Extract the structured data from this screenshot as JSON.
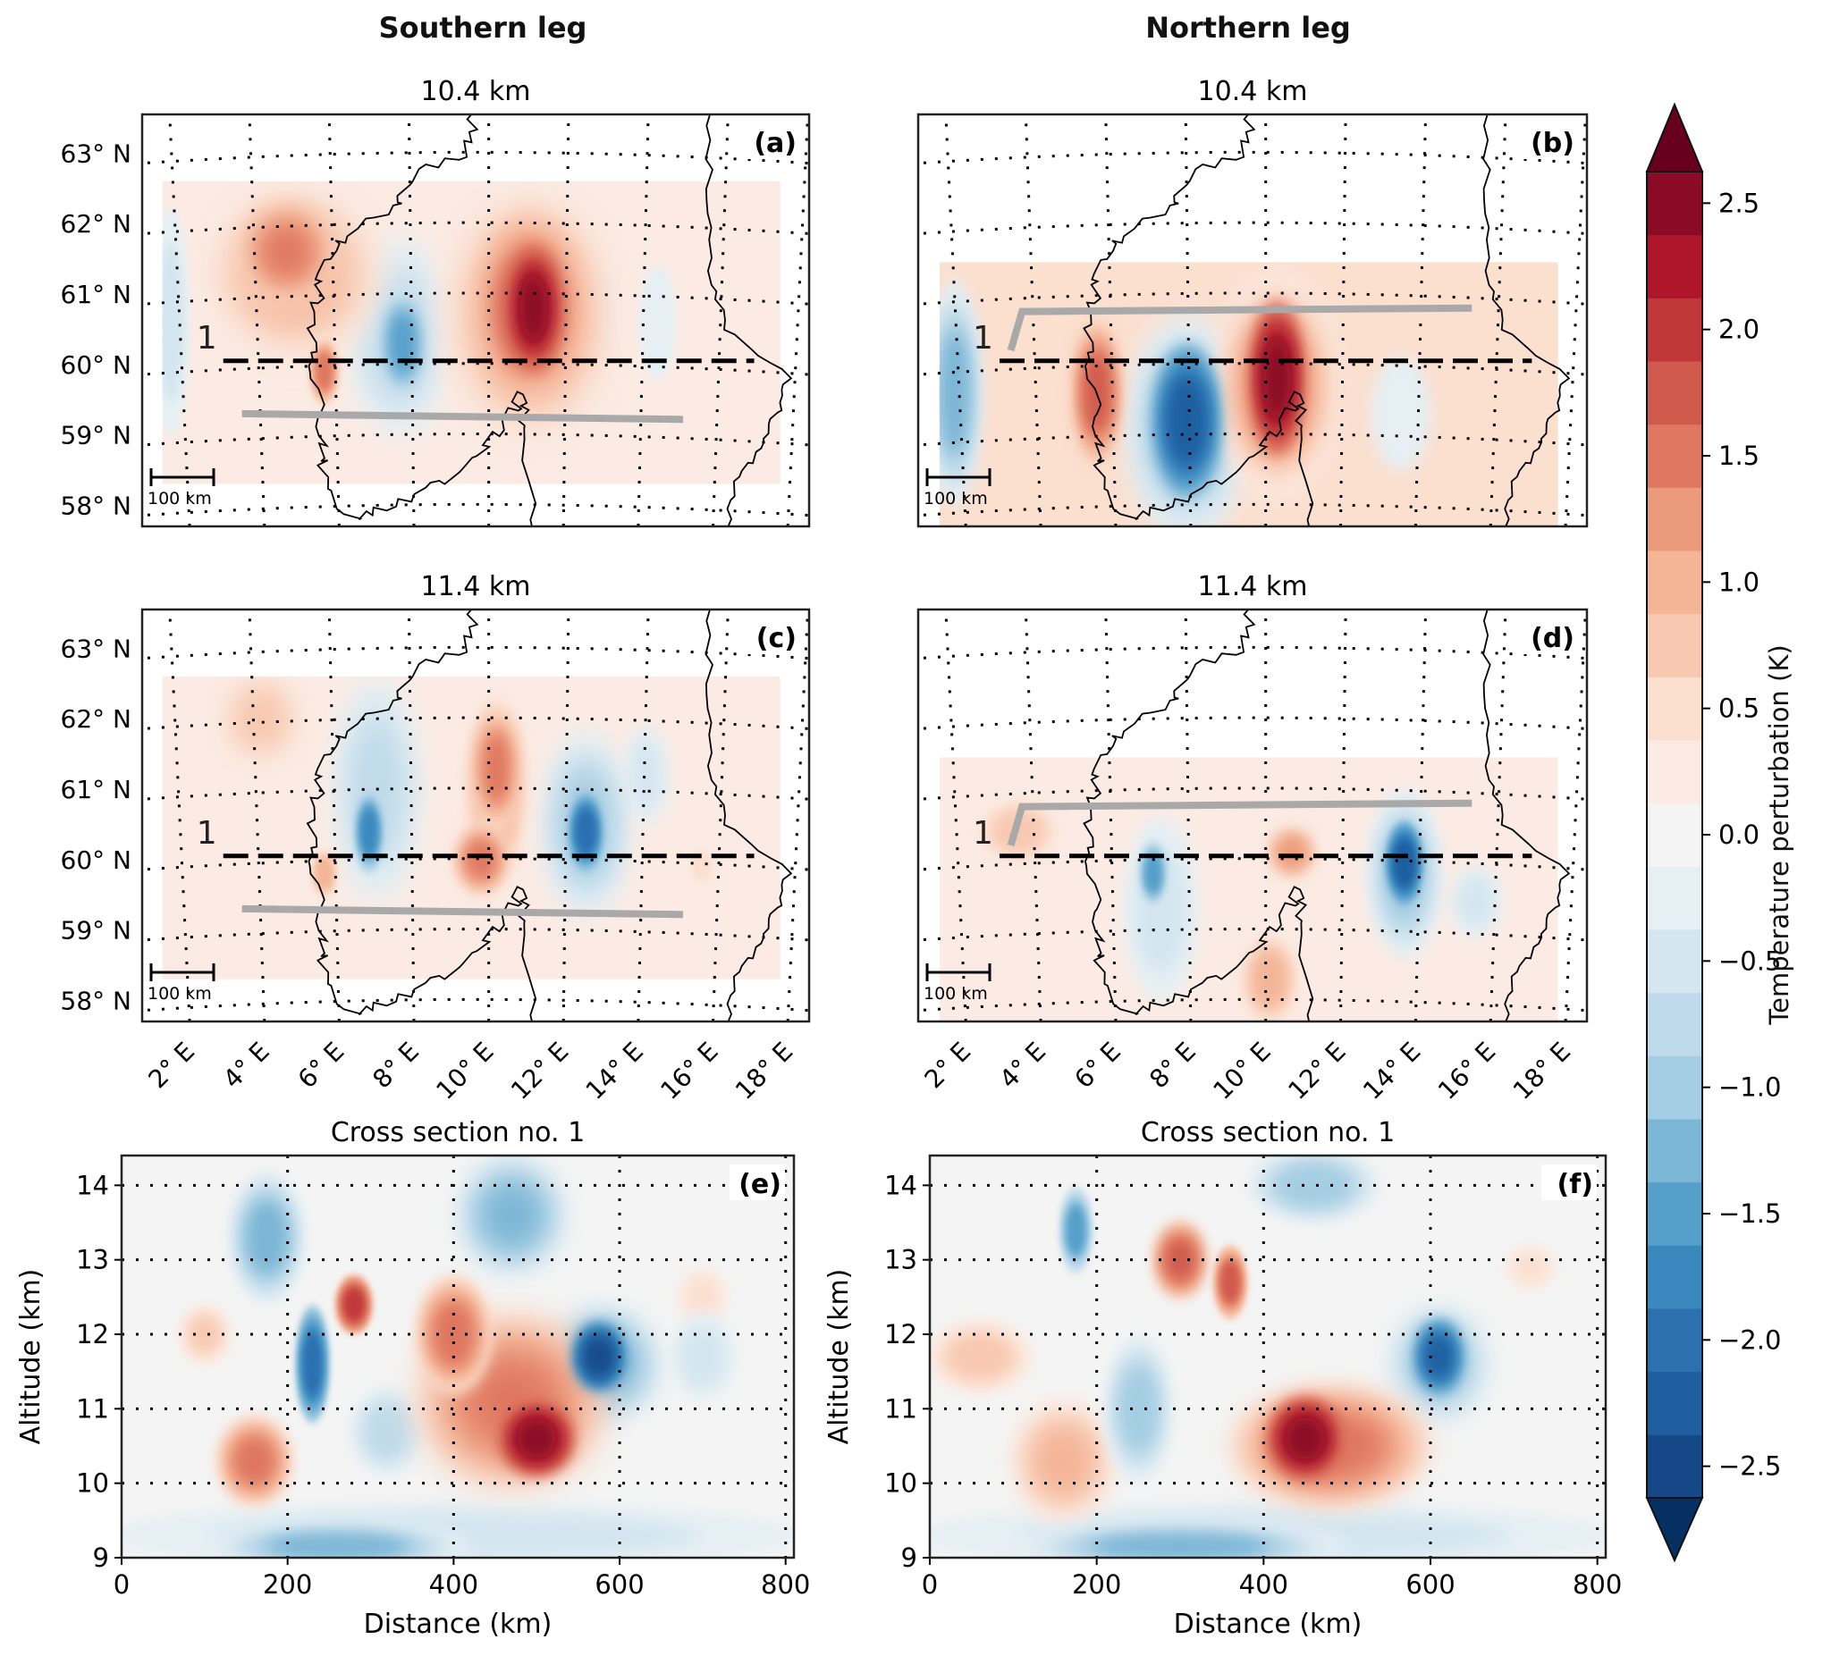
{
  "figure": {
    "col_titles": [
      "Southern leg",
      "Northern leg"
    ]
  },
  "colorbar": {
    "label": "Temperature perturbation (K)",
    "ticks": [
      "2.5",
      "2.0",
      "1.5",
      "1.0",
      "0.5",
      "0.0",
      "−0.5",
      "−1.0",
      "−1.5",
      "−2.0",
      "−2.5"
    ],
    "tick_values": [
      2.5,
      2.0,
      1.5,
      1.0,
      0.5,
      0.0,
      -0.5,
      -1.0,
      -1.5,
      -2.0,
      -2.5
    ],
    "range": [
      -2.625,
      2.625
    ],
    "level_step": 0.25,
    "colors_low_to_high": [
      "#164888",
      "#1f5ea0",
      "#2c70b0",
      "#3b88bf",
      "#559fcb",
      "#7bb6d6",
      "#a5cde3",
      "#bfdaea",
      "#d5e6f0",
      "#e5eff4",
      "#f4f4f4",
      "#fbebe4",
      "#fbdfcf",
      "#f8c8b0",
      "#f4b496",
      "#ec9a7c",
      "#df7660",
      "#d05a4d",
      "#c1373a",
      "#b0162b",
      "#8b0a25"
    ],
    "extend_low": "#053061",
    "extend_high": "#67001f"
  },
  "chart_data": [
    {
      "id": "a",
      "type": "heatmap",
      "panel_label": "(a)",
      "title": "10.4 km",
      "kind": "map",
      "lon_range": [
        0.73,
        18.57
      ],
      "lat_range": [
        57.7,
        63.55
      ],
      "lat_ticks": [
        {
          "v": 63,
          "t": "63° N"
        },
        {
          "v": 62,
          "t": "62° N"
        },
        {
          "v": 61,
          "t": "61° N"
        },
        {
          "v": 60,
          "t": "60° N"
        },
        {
          "v": 59,
          "t": "59° N"
        },
        {
          "v": 58,
          "t": "58° N"
        }
      ],
      "lon_ticks": [],
      "section_label": "1",
      "section_line": {
        "lon": [
          2.9,
          17.1
        ],
        "lat": 60.05
      },
      "flight_track": [
        [
          3.4,
          59.3
        ],
        [
          15.2,
          59.22
        ]
      ],
      "scale_bar": "100 km",
      "data_extent": {
        "lon": [
          1.27,
          17.8
        ],
        "lat": [
          58.3,
          62.6
        ]
      },
      "background_value": 0.35,
      "features": [
        {
          "lon": 1.5,
          "lat": 60.6,
          "rlon": 0.5,
          "rlat": 1.6,
          "value": -0.6
        },
        {
          "lon": 14.5,
          "lat": 60.6,
          "rlon": 0.5,
          "rlat": 0.8,
          "value": -0.3
        },
        {
          "lon": 13.0,
          "lat": 60.8,
          "rlon": 0.4,
          "rlat": 0.6,
          "value": -0.2
        },
        {
          "lon": 4.8,
          "lat": 61.3,
          "rlon": 2.3,
          "rlat": 1.2,
          "value": 1.0
        },
        {
          "lon": 4.6,
          "lat": 61.6,
          "rlon": 1.2,
          "rlat": 0.7,
          "value": 1.4
        },
        {
          "lon": 11.1,
          "lat": 60.7,
          "rlon": 2.3,
          "rlat": 1.9,
          "value": 1.1
        },
        {
          "lon": 11.1,
          "lat": 60.8,
          "rlon": 1.3,
          "rlat": 1.3,
          "value": 1.8
        },
        {
          "lon": 11.2,
          "lat": 60.8,
          "rlon": 0.7,
          "rlat": 0.9,
          "value": 2.6
        },
        {
          "lon": 7.6,
          "lat": 60.4,
          "rlon": 1.3,
          "rlat": 1.4,
          "value": -0.8
        },
        {
          "lon": 7.7,
          "lat": 60.3,
          "rlon": 0.6,
          "rlat": 0.8,
          "value": -1.6
        },
        {
          "lon": 5.6,
          "lat": 59.9,
          "rlon": 0.4,
          "rlat": 0.5,
          "value": 1.5
        }
      ]
    },
    {
      "id": "b",
      "type": "heatmap",
      "panel_label": "(b)",
      "title": "10.4 km",
      "kind": "map",
      "lon_range": [
        0.73,
        18.57
      ],
      "lat_range": [
        57.7,
        63.55
      ],
      "lat_ticks": [],
      "lon_ticks": [],
      "section_label": "1",
      "section_line": {
        "lon": [
          2.9,
          17.1
        ],
        "lat": 60.05
      },
      "flight_track": [
        [
          3.2,
          60.2
        ],
        [
          3.5,
          60.75
        ],
        [
          15.5,
          60.8
        ]
      ],
      "scale_bar": "100 km",
      "data_extent": {
        "lon": [
          1.3,
          17.8
        ],
        "lat": [
          57.7,
          61.45
        ]
      },
      "background_value": 0.45,
      "features": [
        {
          "lon": 1.7,
          "lat": 59.6,
          "rlon": 0.7,
          "rlat": 1.6,
          "value": -1.2
        },
        {
          "lon": 13.6,
          "lat": 59.3,
          "rlon": 0.8,
          "rlat": 0.8,
          "value": -0.3
        },
        {
          "lon": 7.9,
          "lat": 59.1,
          "rlon": 1.6,
          "rlat": 1.6,
          "value": -1.0
        },
        {
          "lon": 7.9,
          "lat": 59.2,
          "rlon": 0.9,
          "rlat": 1.1,
          "value": -2.2
        },
        {
          "lon": 10.3,
          "lat": 59.7,
          "rlon": 1.6,
          "rlat": 1.6,
          "value": 1.3
        },
        {
          "lon": 10.3,
          "lat": 59.8,
          "rlon": 0.7,
          "rlat": 1.1,
          "value": 2.4
        },
        {
          "lon": 5.5,
          "lat": 59.6,
          "rlon": 0.6,
          "rlat": 1.0,
          "value": 1.7
        }
      ]
    },
    {
      "id": "c",
      "type": "heatmap",
      "panel_label": "(c)",
      "title": "11.4 km",
      "kind": "map",
      "lon_range": [
        0.73,
        18.57
      ],
      "lat_range": [
        57.7,
        63.55
      ],
      "lat_ticks": [
        {
          "v": 63,
          "t": "63° N"
        },
        {
          "v": 62,
          "t": "62° N"
        },
        {
          "v": 61,
          "t": "61° N"
        },
        {
          "v": 60,
          "t": "60° N"
        },
        {
          "v": 59,
          "t": "59° N"
        },
        {
          "v": 58,
          "t": "58° N"
        }
      ],
      "lon_ticks": [
        {
          "v": 2,
          "t": "2° E"
        },
        {
          "v": 4,
          "t": "4° E"
        },
        {
          "v": 6,
          "t": "6° E"
        },
        {
          "v": 8,
          "t": "8° E"
        },
        {
          "v": 10,
          "t": "10° E"
        },
        {
          "v": 12,
          "t": "12° E"
        },
        {
          "v": 14,
          "t": "14° E"
        },
        {
          "v": 16,
          "t": "16° E"
        },
        {
          "v": 18,
          "t": "18° E"
        }
      ],
      "section_label": "1",
      "section_line": {
        "lon": [
          2.9,
          17.1
        ],
        "lat": 60.05
      },
      "flight_track": [
        [
          3.4,
          59.3
        ],
        [
          15.2,
          59.22
        ]
      ],
      "scale_bar": "100 km",
      "data_extent": {
        "lon": [
          1.27,
          17.8
        ],
        "lat": [
          58.3,
          62.6
        ]
      },
      "background_value": 0.25,
      "features": [
        {
          "lon": 3.9,
          "lat": 62.0,
          "rlon": 1.2,
          "rlat": 0.7,
          "value": 0.8
        },
        {
          "lon": 14.2,
          "lat": 61.2,
          "rlon": 0.6,
          "rlat": 0.7,
          "value": -0.5
        },
        {
          "lon": 15.7,
          "lat": 59.9,
          "rlon": 0.4,
          "rlat": 0.3,
          "value": 0.6
        },
        {
          "lon": 7.0,
          "lat": 61.0,
          "rlon": 1.1,
          "rlat": 1.6,
          "value": -0.7
        },
        {
          "lon": 6.8,
          "lat": 60.4,
          "rlon": 0.4,
          "rlat": 0.6,
          "value": -1.8
        },
        {
          "lon": 10.2,
          "lat": 61.0,
          "rlon": 0.9,
          "rlat": 1.5,
          "value": 1.0
        },
        {
          "lon": 10.2,
          "lat": 61.3,
          "rlon": 0.6,
          "rlat": 0.9,
          "value": 1.4
        },
        {
          "lon": 9.8,
          "lat": 60.0,
          "rlon": 0.7,
          "rlat": 0.5,
          "value": 1.5
        },
        {
          "lon": 12.6,
          "lat": 60.5,
          "rlon": 1.1,
          "rlat": 1.3,
          "value": -1.0
        },
        {
          "lon": 12.6,
          "lat": 60.4,
          "rlon": 0.5,
          "rlat": 0.6,
          "value": -2.0
        },
        {
          "lon": 5.6,
          "lat": 59.8,
          "rlon": 0.4,
          "rlat": 0.4,
          "value": 1.0
        }
      ]
    },
    {
      "id": "d",
      "type": "heatmap",
      "panel_label": "(d)",
      "title": "11.4 km",
      "kind": "map",
      "lon_range": [
        0.73,
        18.57
      ],
      "lat_range": [
        57.7,
        63.55
      ],
      "lat_ticks": [],
      "lon_ticks": [
        {
          "v": 2,
          "t": "2° E"
        },
        {
          "v": 4,
          "t": "4° E"
        },
        {
          "v": 6,
          "t": "6° E"
        },
        {
          "v": 8,
          "t": "8° E"
        },
        {
          "v": 10,
          "t": "10° E"
        },
        {
          "v": 12,
          "t": "12° E"
        },
        {
          "v": 14,
          "t": "14° E"
        },
        {
          "v": 16,
          "t": "16° E"
        },
        {
          "v": 18,
          "t": "18° E"
        }
      ],
      "section_label": "1",
      "section_line": {
        "lon": [
          2.9,
          17.1
        ],
        "lat": 60.05
      },
      "flight_track": [
        [
          3.2,
          60.2
        ],
        [
          3.5,
          60.75
        ],
        [
          15.5,
          60.8
        ]
      ],
      "scale_bar": "100 km",
      "data_extent": {
        "lon": [
          1.3,
          17.8
        ],
        "lat": [
          57.7,
          61.45
        ]
      },
      "background_value": 0.15,
      "features": [
        {
          "lon": 3.4,
          "lat": 60.4,
          "rlon": 1.2,
          "rlat": 0.5,
          "value": 0.7
        },
        {
          "lon": 15.6,
          "lat": 59.4,
          "rlon": 0.7,
          "rlat": 0.5,
          "value": -0.5
        },
        {
          "lon": 10.1,
          "lat": 58.3,
          "rlon": 0.8,
          "rlat": 0.7,
          "value": 0.9
        },
        {
          "lon": 7.2,
          "lat": 59.3,
          "rlon": 1.0,
          "rlat": 1.3,
          "value": -0.6
        },
        {
          "lon": 7.0,
          "lat": 59.8,
          "rlon": 0.4,
          "rlat": 0.5,
          "value": -1.5
        },
        {
          "lon": 10.7,
          "lat": 60.1,
          "rlon": 0.7,
          "rlat": 0.4,
          "value": 1.3
        },
        {
          "lon": 13.7,
          "lat": 59.8,
          "rlon": 1.0,
          "rlat": 1.2,
          "value": -1.0
        },
        {
          "lon": 13.7,
          "lat": 59.95,
          "rlon": 0.5,
          "rlat": 0.6,
          "value": -2.3
        }
      ]
    },
    {
      "id": "e",
      "type": "heatmap",
      "panel_label": "(e)",
      "title": "Cross section no. 1",
      "kind": "section",
      "xlabel": "Distance (km)",
      "ylabel": "Altitude (km)",
      "xlim": [
        0,
        810
      ],
      "ylim": [
        9,
        14.4
      ],
      "xticks": [
        0,
        200,
        400,
        600,
        800
      ],
      "yticks": [
        9,
        10,
        11,
        12,
        13,
        14
      ],
      "background_value": 0.1,
      "features": [
        {
          "x": 400,
          "y": 9.3,
          "rx": 420,
          "ry": 0.45,
          "value": -0.6
        },
        {
          "x": 260,
          "y": 9.15,
          "rx": 160,
          "ry": 0.3,
          "value": -1.3
        },
        {
          "x": 100,
          "y": 12.0,
          "rx": 30,
          "ry": 0.4,
          "value": 0.7
        },
        {
          "x": 700,
          "y": 12.5,
          "rx": 30,
          "ry": 0.4,
          "value": 0.6
        },
        {
          "x": 700,
          "y": 11.7,
          "rx": 40,
          "ry": 0.6,
          "value": -0.6
        },
        {
          "x": 320,
          "y": 10.7,
          "rx": 45,
          "ry": 0.6,
          "value": -0.8
        },
        {
          "x": 175,
          "y": 13.3,
          "rx": 45,
          "ry": 0.9,
          "value": -1.3
        },
        {
          "x": 470,
          "y": 13.6,
          "rx": 65,
          "ry": 0.8,
          "value": -1.3
        },
        {
          "x": 160,
          "y": 10.3,
          "rx": 45,
          "ry": 0.6,
          "value": 1.5
        },
        {
          "x": 470,
          "y": 11.1,
          "rx": 110,
          "ry": 1.1,
          "value": 1.5
        },
        {
          "x": 400,
          "y": 12.0,
          "rx": 45,
          "ry": 0.8,
          "value": 1.5
        },
        {
          "x": 500,
          "y": 10.6,
          "rx": 45,
          "ry": 0.5,
          "value": 2.5
        },
        {
          "x": 280,
          "y": 12.4,
          "rx": 22,
          "ry": 0.4,
          "value": 2.0
        },
        {
          "x": 580,
          "y": 11.6,
          "rx": 70,
          "ry": 0.8,
          "value": -1.2
        },
        {
          "x": 575,
          "y": 11.7,
          "rx": 30,
          "ry": 0.45,
          "value": -2.5
        },
        {
          "x": 230,
          "y": 11.6,
          "rx": 20,
          "ry": 0.8,
          "value": -2.0
        }
      ]
    },
    {
      "id": "f",
      "type": "heatmap",
      "panel_label": "(f)",
      "title": "Cross section no. 1",
      "kind": "section",
      "xlabel": "Distance (km)",
      "ylabel": "Altitude (km)",
      "xlim": [
        0,
        810
      ],
      "ylim": [
        9,
        14.4
      ],
      "xticks": [
        0,
        200,
        400,
        600,
        800
      ],
      "yticks": [
        9,
        10,
        11,
        12,
        13,
        14
      ],
      "background_value": 0.1,
      "features": [
        {
          "x": 400,
          "y": 9.3,
          "rx": 420,
          "ry": 0.45,
          "value": -0.5
        },
        {
          "x": 300,
          "y": 9.15,
          "rx": 200,
          "ry": 0.3,
          "value": -1.2
        },
        {
          "x": 60,
          "y": 11.7,
          "rx": 65,
          "ry": 0.5,
          "value": 0.8
        },
        {
          "x": 160,
          "y": 10.3,
          "rx": 60,
          "ry": 0.8,
          "value": 1.0
        },
        {
          "x": 720,
          "y": 12.9,
          "rx": 30,
          "ry": 0.3,
          "value": 0.5
        },
        {
          "x": 250,
          "y": 11.0,
          "rx": 40,
          "ry": 1.0,
          "value": -1.0
        },
        {
          "x": 460,
          "y": 14.0,
          "rx": 80,
          "ry": 0.5,
          "value": -1.0
        },
        {
          "x": 175,
          "y": 13.4,
          "rx": 20,
          "ry": 0.6,
          "value": -1.6
        },
        {
          "x": 480,
          "y": 10.5,
          "rx": 120,
          "ry": 0.8,
          "value": 1.5
        },
        {
          "x": 450,
          "y": 10.6,
          "rx": 45,
          "ry": 0.55,
          "value": 2.5
        },
        {
          "x": 300,
          "y": 13.0,
          "rx": 30,
          "ry": 0.5,
          "value": 1.8
        },
        {
          "x": 360,
          "y": 12.7,
          "rx": 20,
          "ry": 0.5,
          "value": 1.8
        },
        {
          "x": 610,
          "y": 11.6,
          "rx": 60,
          "ry": 0.8,
          "value": -1.0
        },
        {
          "x": 610,
          "y": 11.7,
          "rx": 28,
          "ry": 0.5,
          "value": -2.3
        }
      ]
    }
  ]
}
